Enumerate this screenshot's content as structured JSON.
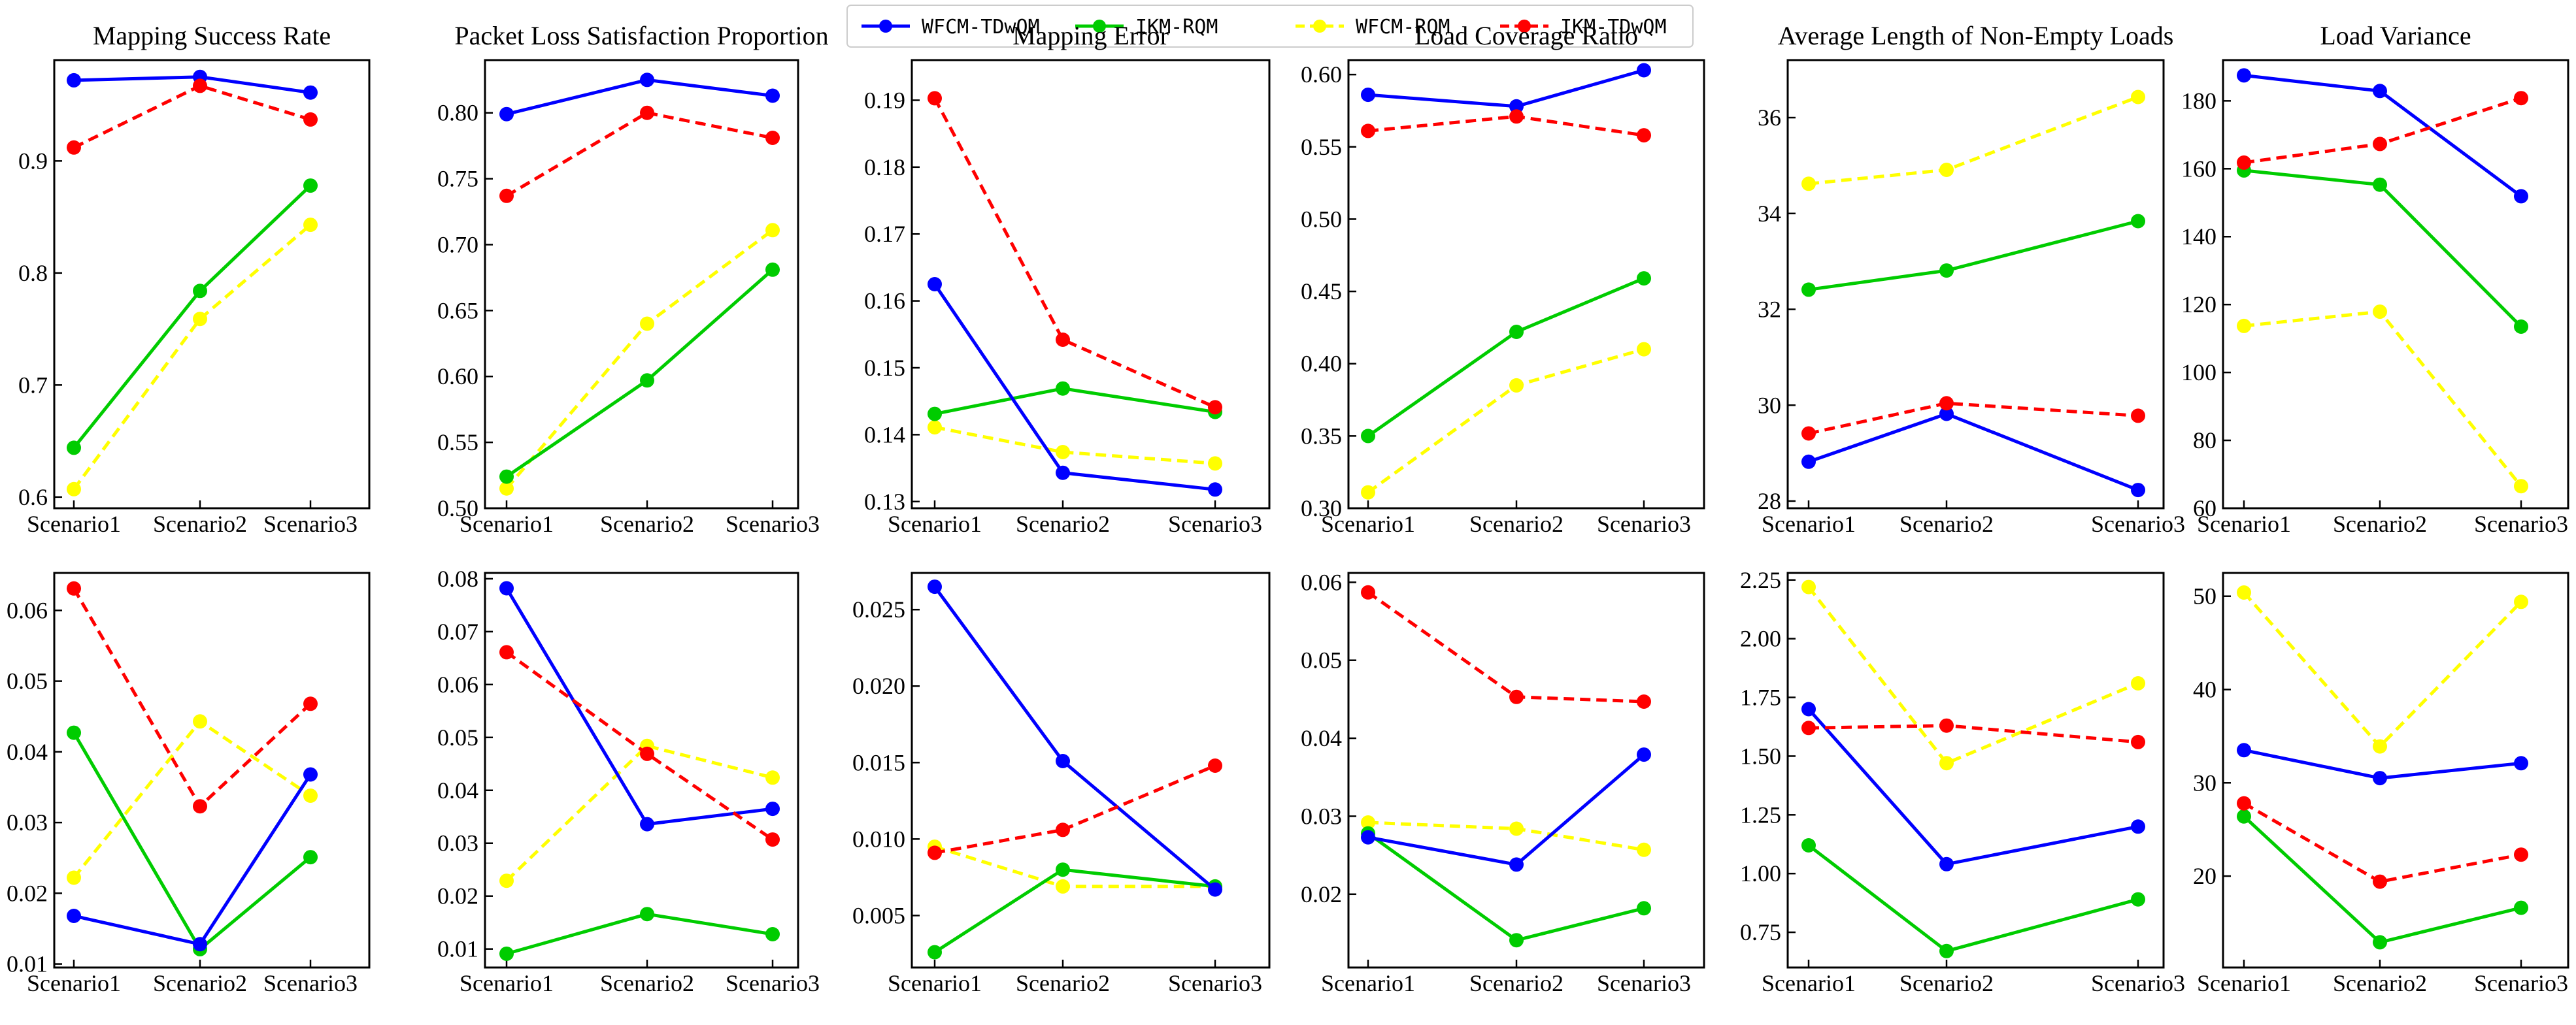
{
  "legend": [
    {
      "name": "WFCM-TDwQM",
      "color": "#0000ff",
      "dash": "solid"
    },
    {
      "name": "IKM-RQM",
      "color": "#00cc00",
      "dash": "solid"
    },
    {
      "name": "WFCM-RQM",
      "color": "#ffff00",
      "dash": "dashed"
    },
    {
      "name": "IKM-TDwQM",
      "color": "#ff0000",
      "dash": "dashed"
    }
  ],
  "chart_data": [
    {
      "type": "line",
      "title": "Mapping Success Rate",
      "categories": [
        "Scenario1",
        "Scenario2",
        "Scenario3"
      ],
      "ylim": [
        0.59,
        0.99
      ],
      "yticks": [
        0.6,
        0.7,
        0.8,
        0.9
      ],
      "series": [
        {
          "name": "WFCM-TDwQM",
          "values": [
            0.972,
            0.975,
            0.961
          ]
        },
        {
          "name": "IKM-RQM",
          "values": [
            0.644,
            0.784,
            0.878
          ]
        },
        {
          "name": "WFCM-RQM",
          "values": [
            0.607,
            0.759,
            0.843
          ]
        },
        {
          "name": "IKM-TDwQM",
          "values": [
            0.912,
            0.967,
            0.937
          ]
        }
      ]
    },
    {
      "type": "line",
      "title": "Packet Loss Satisfaction Proportion",
      "categories": [
        "Scenario1",
        "Scenario2",
        "Scenario3"
      ],
      "ylim": [
        0.5,
        0.84
      ],
      "yticks": [
        0.5,
        0.55,
        0.6,
        0.65,
        0.7,
        0.75,
        0.8
      ],
      "series": [
        {
          "name": "WFCM-TDwQM",
          "values": [
            0.799,
            0.825,
            0.813
          ]
        },
        {
          "name": "IKM-RQM",
          "values": [
            0.524,
            0.597,
            0.681
          ]
        },
        {
          "name": "WFCM-RQM",
          "values": [
            0.515,
            0.64,
            0.711
          ]
        },
        {
          "name": "IKM-TDwQM",
          "values": [
            0.737,
            0.8,
            0.781
          ]
        }
      ]
    },
    {
      "type": "line",
      "title": "Mapping Error",
      "categories": [
        "Scenario1",
        "Scenario2",
        "Scenario3"
      ],
      "ylim": [
        0.129,
        0.196
      ],
      "yticks": [
        0.13,
        0.14,
        0.15,
        0.16,
        0.17,
        0.18,
        0.19
      ],
      "series": [
        {
          "name": "WFCM-TDwQM",
          "values": [
            0.1625,
            0.1343,
            0.1318
          ]
        },
        {
          "name": "IKM-RQM",
          "values": [
            0.1431,
            0.1469,
            0.1434
          ]
        },
        {
          "name": "WFCM-RQM",
          "values": [
            0.1411,
            0.1374,
            0.1357
          ]
        },
        {
          "name": "IKM-TDwQM",
          "values": [
            0.1903,
            0.1542,
            0.1441
          ]
        }
      ]
    },
    {
      "type": "line",
      "title": "Load Coverage Ratio",
      "categories": [
        "Scenario1",
        "Scenario2",
        "Scenario3"
      ],
      "ylim": [
        0.3,
        0.61
      ],
      "yticks": [
        0.3,
        0.35,
        0.4,
        0.45,
        0.5,
        0.55,
        0.6
      ],
      "series": [
        {
          "name": "WFCM-TDwQM",
          "values": [
            0.586,
            0.578,
            0.603
          ]
        },
        {
          "name": "IKM-RQM",
          "values": [
            0.35,
            0.422,
            0.459
          ]
        },
        {
          "name": "WFCM-RQM",
          "values": [
            0.311,
            0.385,
            0.41
          ]
        },
        {
          "name": "IKM-TDwQM",
          "values": [
            0.561,
            0.571,
            0.558
          ]
        }
      ]
    },
    {
      "type": "line",
      "title": "Average Length of Non-Empty Loads",
      "categories": [
        "Scenario1",
        "Scenario2",
        "Scenario3"
      ],
      "ylim": [
        27.85,
        37.2
      ],
      "yticks": [
        28,
        30,
        32,
        34,
        36
      ],
      "series": [
        {
          "name": "WFCM-TDwQM",
          "values": [
            28.82,
            29.82,
            28.23
          ]
        },
        {
          "name": "IKM-RQM",
          "values": [
            32.41,
            32.81,
            33.84
          ]
        },
        {
          "name": "WFCM-RQM",
          "values": [
            34.62,
            34.91,
            36.43
          ]
        },
        {
          "name": "IKM-TDwQM",
          "values": [
            29.41,
            30.04,
            29.78
          ]
        }
      ]
    },
    {
      "type": "line",
      "title": "Load Variance",
      "categories": [
        "Scenario1",
        "Scenario2",
        "Scenario3"
      ],
      "ylim": [
        60,
        192
      ],
      "yticks": [
        60,
        80,
        100,
        120,
        140,
        160,
        180
      ],
      "series": [
        {
          "name": "WFCM-TDwQM",
          "values": [
            187.5,
            182.9,
            151.9
          ]
        },
        {
          "name": "IKM-RQM",
          "values": [
            159.5,
            155.3,
            113.5
          ]
        },
        {
          "name": "WFCM-RQM",
          "values": [
            113.7,
            117.9,
            66.5
          ]
        },
        {
          "name": "IKM-TDwQM",
          "values": [
            161.8,
            167.3,
            180.8
          ]
        }
      ]
    },
    {
      "type": "line",
      "title": "",
      "categories": [
        "Scenario1",
        "Scenario2",
        "Scenario3"
      ],
      "ylim": [
        0.0095,
        0.0653
      ],
      "yticks": [
        0.01,
        0.02,
        0.03,
        0.04,
        0.05,
        0.06
      ],
      "series": [
        {
          "name": "WFCM-TDwQM",
          "values": [
            0.0168,
            0.0128,
            0.0368
          ]
        },
        {
          "name": "IKM-RQM",
          "values": [
            0.0427,
            0.0121,
            0.0251
          ]
        },
        {
          "name": "WFCM-RQM",
          "values": [
            0.0222,
            0.0443,
            0.0338
          ]
        },
        {
          "name": "IKM-TDwQM",
          "values": [
            0.0631,
            0.0323,
            0.0468
          ]
        }
      ]
    },
    {
      "type": "line",
      "title": "",
      "categories": [
        "Scenario1",
        "Scenario2",
        "Scenario3"
      ],
      "ylim": [
        0.0065,
        0.0811
      ],
      "yticks": [
        0.01,
        0.02,
        0.03,
        0.04,
        0.05,
        0.06,
        0.07,
        0.08
      ],
      "series": [
        {
          "name": "WFCM-TDwQM",
          "values": [
            0.0782,
            0.0336,
            0.0365
          ]
        },
        {
          "name": "IKM-RQM",
          "values": [
            0.0091,
            0.0166,
            0.0128
          ]
        },
        {
          "name": "WFCM-RQM",
          "values": [
            0.0229,
            0.0484,
            0.0424
          ]
        },
        {
          "name": "IKM-TDwQM",
          "values": [
            0.0661,
            0.0469,
            0.0307
          ]
        }
      ]
    },
    {
      "type": "line",
      "title": "",
      "categories": [
        "Scenario1",
        "Scenario2",
        "Scenario3"
      ],
      "ylim": [
        0.0016,
        0.0274
      ],
      "yticks": [
        0.005,
        0.01,
        0.015,
        0.02,
        0.025
      ],
      "series": [
        {
          "name": "WFCM-TDwQM",
          "values": [
            0.0265,
            0.0151,
            0.0067
          ]
        },
        {
          "name": "IKM-RQM",
          "values": [
            0.0026,
            0.008,
            0.0069
          ]
        },
        {
          "name": "WFCM-RQM",
          "values": [
            0.0095,
            0.0069,
            0.0069
          ]
        },
        {
          "name": "IKM-TDwQM",
          "values": [
            0.0091,
            0.0106,
            0.0148
          ]
        }
      ]
    },
    {
      "type": "line",
      "title": "",
      "categories": [
        "Scenario1",
        "Scenario2",
        "Scenario3"
      ],
      "ylim": [
        0.0106,
        0.0612
      ],
      "yticks": [
        0.02,
        0.03,
        0.04,
        0.05,
        0.06
      ],
      "series": [
        {
          "name": "WFCM-TDwQM",
          "values": [
            0.0273,
            0.0238,
            0.0379
          ]
        },
        {
          "name": "IKM-RQM",
          "values": [
            0.0278,
            0.0141,
            0.0182
          ]
        },
        {
          "name": "WFCM-RQM",
          "values": [
            0.0292,
            0.0284,
            0.0257
          ]
        },
        {
          "name": "IKM-TDwQM",
          "values": [
            0.0587,
            0.0453,
            0.0447
          ]
        }
      ]
    },
    {
      "type": "line",
      "title": "",
      "categories": [
        "Scenario1",
        "Scenario2",
        "Scenario3"
      ],
      "ylim": [
        0.6,
        2.28
      ],
      "yticks": [
        0.75,
        1.0,
        1.25,
        1.5,
        1.75,
        2.0,
        2.25
      ],
      "series": [
        {
          "name": "WFCM-TDwQM",
          "values": [
            1.7,
            1.04,
            1.2
          ]
        },
        {
          "name": "IKM-RQM",
          "values": [
            1.12,
            0.67,
            0.89
          ]
        },
        {
          "name": "WFCM-RQM",
          "values": [
            2.22,
            1.47,
            1.81
          ]
        },
        {
          "name": "IKM-TDwQM",
          "values": [
            1.62,
            1.63,
            1.56
          ]
        }
      ]
    },
    {
      "type": "line",
      "title": "",
      "categories": [
        "Scenario1",
        "Scenario2",
        "Scenario3"
      ],
      "ylim": [
        10.2,
        52.5
      ],
      "yticks": [
        20,
        30,
        40,
        50
      ],
      "series": [
        {
          "name": "WFCM-TDwQM",
          "values": [
            33.5,
            30.5,
            32.1
          ]
        },
        {
          "name": "IKM-RQM",
          "values": [
            26.4,
            12.9,
            16.6
          ]
        },
        {
          "name": "WFCM-RQM",
          "values": [
            50.4,
            33.9,
            49.4
          ]
        },
        {
          "name": "IKM-TDwQM",
          "values": [
            27.8,
            19.4,
            22.3
          ]
        }
      ]
    }
  ]
}
